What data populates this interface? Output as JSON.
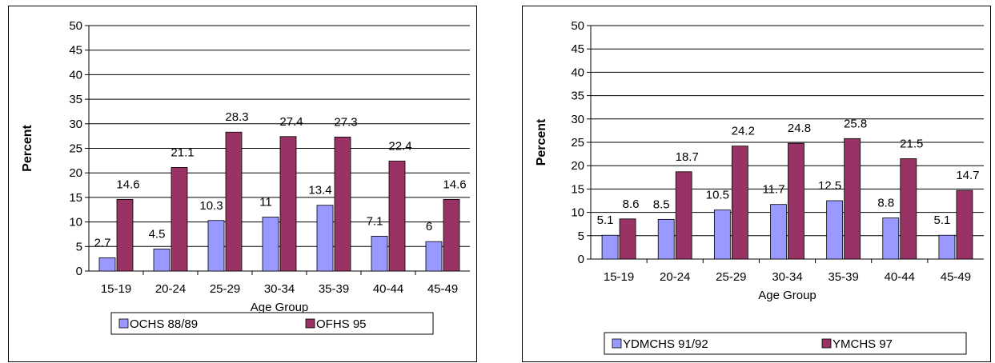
{
  "chart_data": [
    {
      "type": "bar",
      "categories": [
        "15-19",
        "20-24",
        "25-29",
        "30-34",
        "35-39",
        "40-44",
        "45-49"
      ],
      "series": [
        {
          "name": "OCHS 88/89",
          "values": [
            2.7,
            4.5,
            10.3,
            11,
            13.4,
            7.1,
            6
          ]
        },
        {
          "name": "OFHS 95",
          "values": [
            14.6,
            21.1,
            28.3,
            27.4,
            27.3,
            22.4,
            14.6
          ]
        }
      ],
      "data_labels": [
        [
          "2.7",
          "4.5",
          "10.3",
          "11",
          "13.4",
          "7.1",
          "6"
        ],
        [
          "14.6",
          "21.1",
          "28.3",
          "27.4",
          "27.3",
          "22.4",
          "14.6"
        ]
      ],
      "yticks": [
        "0",
        "5",
        "10",
        "15",
        "20",
        "25",
        "30",
        "35",
        "40",
        "45",
        "50"
      ],
      "xlabel": "Age Group",
      "ylabel": "Percent",
      "ylim": [
        0,
        50
      ],
      "grid": true,
      "legend": "bottom",
      "colors": [
        "#9999ff",
        "#993366"
      ]
    },
    {
      "type": "bar",
      "categories": [
        "15-19",
        "20-24",
        "25-29",
        "30-34",
        "35-39",
        "40-44",
        "45-49"
      ],
      "series": [
        {
          "name": "YDMCHS 91/92",
          "values": [
            5.1,
            8.5,
            10.5,
            11.7,
            12.5,
            8.8,
            5.1
          ]
        },
        {
          "name": "YMCHS 97",
          "values": [
            8.6,
            18.7,
            24.2,
            24.8,
            25.8,
            21.5,
            14.7
          ]
        }
      ],
      "data_labels": [
        [
          "5.1",
          "8.5",
          "10.5",
          "11.7",
          "12.5",
          "8.8",
          "5.1"
        ],
        [
          "8.6",
          "18.7",
          "24.2",
          "24.8",
          "25.8",
          "21.5",
          "14.7"
        ]
      ],
      "yticks": [
        "0",
        "5",
        "10",
        "15",
        "20",
        "25",
        "30",
        "35",
        "40",
        "45",
        "50"
      ],
      "xlabel": "Age Group",
      "ylabel": "Percent",
      "ylim": [
        0,
        50
      ],
      "grid": true,
      "legend": "bottom",
      "colors": [
        "#9999ff",
        "#993366"
      ]
    }
  ]
}
